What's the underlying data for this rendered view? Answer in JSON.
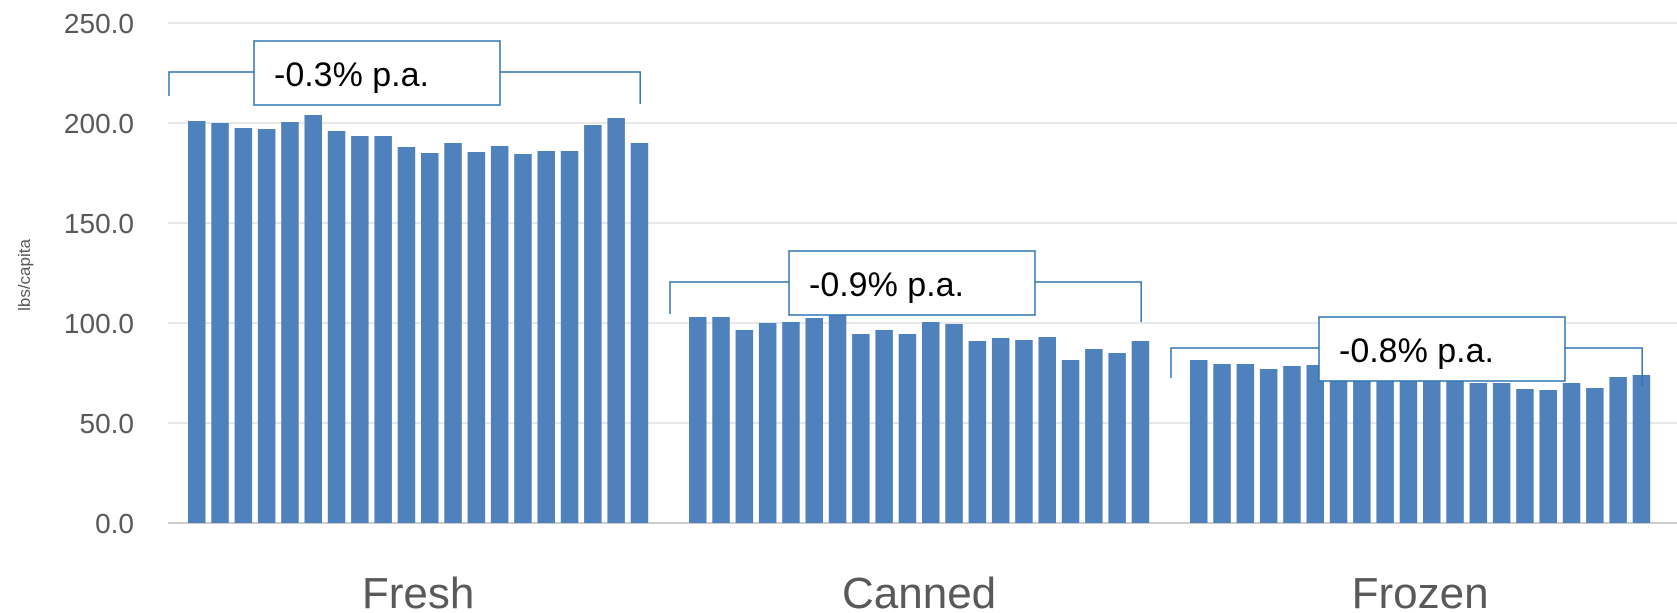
{
  "chart_data": {
    "type": "bar",
    "title": "",
    "ylabel": "lbs/capita",
    "xlabel": "",
    "ylim": [
      0,
      250
    ],
    "yticks": [
      "0.0",
      "50.0",
      "100.0",
      "150.0",
      "200.0",
      "250.0"
    ],
    "ytick_values": [
      0,
      50,
      100,
      150,
      200,
      250
    ],
    "grid": true,
    "bar_color": "#4F81BD",
    "gridline_color": "#D9D9D9",
    "annotation_color": "#2E75B6",
    "groups": [
      {
        "category": "Fresh",
        "annotation": "-0.3% p.a.",
        "values": [
          201,
          200,
          197.5,
          197,
          200.5,
          204,
          196,
          193.5,
          193.5,
          188,
          185,
          190,
          185.5,
          188.5,
          184.5,
          186,
          186,
          199,
          202.5,
          190
        ]
      },
      {
        "category": "Canned",
        "annotation": "-0.9% p.a.",
        "values": [
          103,
          103,
          96.5,
          100,
          100.5,
          102.5,
          106,
          94.5,
          96.5,
          94.5,
          100.5,
          99.5,
          91,
          92.5,
          91.5,
          93,
          81.5,
          87,
          85,
          91
        ]
      },
      {
        "category": "Frozen",
        "annotation": "-0.8% p.a.",
        "values": [
          81.5,
          79.5,
          79.5,
          77,
          78.5,
          79,
          76,
          73,
          73,
          72,
          71.5,
          71,
          70,
          70,
          67,
          66.5,
          70,
          67.5,
          73,
          74
        ]
      }
    ]
  }
}
